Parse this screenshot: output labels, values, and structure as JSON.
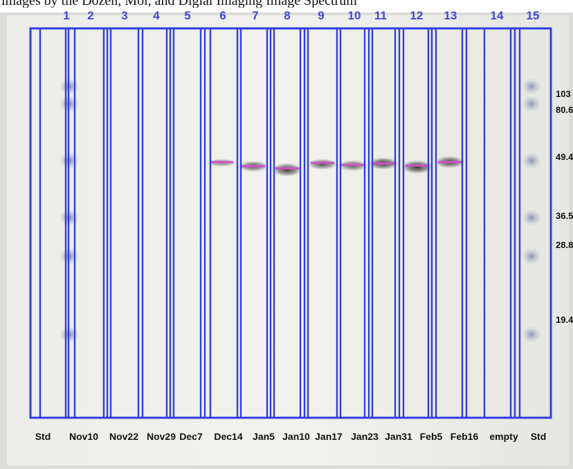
{
  "caption": "images by the Dozen, Mol, and Digial Imaging Image Spectrum",
  "lanes": [
    {
      "number": "1",
      "label": "Std"
    },
    {
      "number": "2",
      "label": "Nov10"
    },
    {
      "number": "3",
      "label": "Nov22"
    },
    {
      "number": "4",
      "label": "Nov29"
    },
    {
      "number": "5",
      "label": "Dec7"
    },
    {
      "number": "6",
      "label": "Dec14"
    },
    {
      "number": "7",
      "label": "Jan5"
    },
    {
      "number": "8",
      "label": "Jan10"
    },
    {
      "number": "9",
      "label": "Jan17"
    },
    {
      "number": "10",
      "label": "Jan23"
    },
    {
      "number": "11",
      "label": "Jan31"
    },
    {
      "number": "12",
      "label": "Feb5"
    },
    {
      "number": "13",
      "label": "Feb16"
    },
    {
      "number": "14",
      "label": "empty"
    },
    {
      "number": "15",
      "label": "Std"
    }
  ],
  "markers": [
    "103",
    "80.6",
    "49.4",
    "36.5",
    "28.8",
    "19.4"
  ],
  "colors": {
    "lane_frame": "#2e3ee0",
    "lane_number": "#3a48d8",
    "band_line": "#d050c8",
    "band_dark": "#2a2a2a",
    "membrane": "#e9e9e6",
    "paper_edge": "#d9d9d4"
  }
}
